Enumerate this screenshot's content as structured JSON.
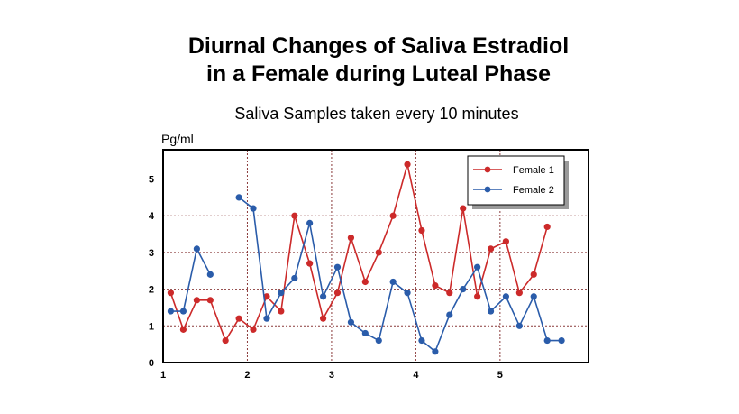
{
  "chart_data": {
    "type": "line",
    "title": [
      "Diurnal Changes of Saliva Estradiol",
      "in a Female during Luteal Phase"
    ],
    "subtitle": "Saliva Samples taken every 10 minutes",
    "ylabel": "Pg/ml",
    "xlabel": "",
    "xlim": [
      1,
      6.05
    ],
    "ylim": [
      0,
      5.8
    ],
    "x_ticks": [
      1,
      2,
      3,
      4,
      5
    ],
    "y_ticks": [
      0,
      1,
      2,
      3,
      4,
      5
    ],
    "grid": true,
    "legend_position": "top-right",
    "series": [
      {
        "name": "Female 1",
        "color": "#cc2a2a",
        "x": [
          1.09,
          1.24,
          1.4,
          1.56,
          1.74,
          1.9,
          2.07,
          2.23,
          2.4,
          2.56,
          2.74,
          2.9,
          3.07,
          3.23,
          3.4,
          3.56,
          3.73,
          3.9,
          4.07,
          4.23,
          4.4,
          4.56,
          4.73,
          4.89,
          5.07,
          5.23,
          5.4,
          5.56,
          5.73
        ],
        "values": [
          1.9,
          0.9,
          1.7,
          1.7,
          0.6,
          1.2,
          0.9,
          1.8,
          1.4,
          4.0,
          2.7,
          1.2,
          1.9,
          3.4,
          2.2,
          3.0,
          4.0,
          5.4,
          3.6,
          2.1,
          1.9,
          4.2,
          1.8,
          3.1,
          3.3,
          1.9,
          2.4,
          3.7,
          null
        ]
      },
      {
        "name": "Female 2",
        "color": "#2a5caa",
        "x": [
          1.09,
          1.24,
          1.4,
          1.56,
          1.74,
          1.9,
          2.07,
          2.23,
          2.4,
          2.56,
          2.74,
          2.9,
          3.07,
          3.23,
          3.4,
          3.56,
          3.73,
          3.9,
          4.07,
          4.23,
          4.4,
          4.56,
          4.73,
          4.89,
          5.07,
          5.23,
          5.4,
          5.56,
          5.73
        ],
        "values": [
          1.4,
          1.4,
          3.1,
          2.4,
          null,
          4.5,
          4.2,
          1.2,
          1.9,
          2.3,
          3.8,
          1.8,
          2.6,
          1.1,
          0.8,
          0.6,
          2.2,
          1.9,
          0.6,
          0.3,
          1.3,
          2.0,
          2.6,
          1.4,
          1.8,
          1.0,
          1.8,
          0.6,
          0.6
        ]
      }
    ]
  }
}
